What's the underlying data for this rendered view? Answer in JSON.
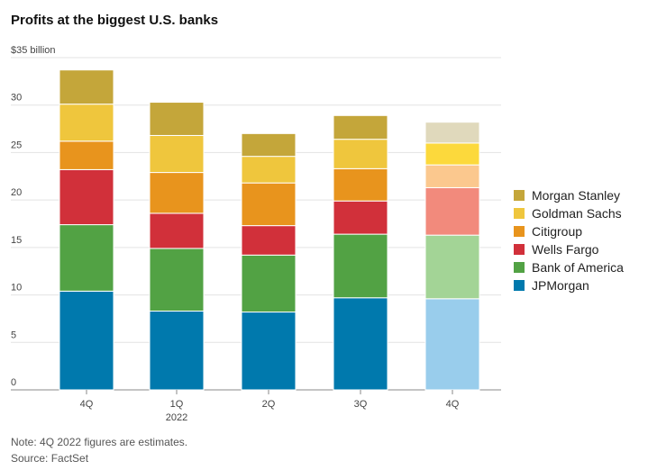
{
  "title": "Profits at the biggest U.S. banks",
  "note": "Note: 4Q 2022 figures are estimates.",
  "source": "Source: FactSet",
  "chart_data": {
    "type": "bar",
    "stacked": true,
    "unit_label": "$35 billion",
    "categories": [
      "4Q",
      "1Q",
      "2Q",
      "3Q",
      "4Q"
    ],
    "category_sublabels": [
      "",
      "2022",
      "",
      "",
      ""
    ],
    "ylim": [
      0,
      35
    ],
    "yticks": [
      0,
      5,
      10,
      15,
      20,
      25,
      30,
      35
    ],
    "ytick_labels": [
      "0",
      "5",
      "10",
      "15",
      "20",
      "25",
      "30",
      "$35 billion"
    ],
    "legend_position": "right",
    "estimated_categories": [
      4
    ],
    "series": [
      {
        "name": "JPMorgan",
        "color": "#0079ad",
        "estimate_color": "#99cdec",
        "values": [
          10.4,
          8.3,
          8.2,
          9.7,
          9.6
        ]
      },
      {
        "name": "Bank of America",
        "color": "#52a244",
        "estimate_color": "#a3d496",
        "values": [
          7.0,
          6.6,
          6.0,
          6.7,
          6.7
        ]
      },
      {
        "name": "Wells Fargo",
        "color": "#d1303a",
        "estimate_color": "#f28a7c",
        "values": [
          5.8,
          3.7,
          3.1,
          3.5,
          5.0
        ]
      },
      {
        "name": "Citigroup",
        "color": "#e8941d",
        "estimate_color": "#fbc88e",
        "values": [
          3.0,
          4.3,
          4.5,
          3.4,
          2.4
        ]
      },
      {
        "name": "Goldman Sachs",
        "color": "#efc63d",
        "estimate_color": "#fcd93c",
        "values": [
          3.9,
          3.9,
          2.8,
          3.1,
          2.3
        ]
      },
      {
        "name": "Morgan Stanley",
        "color": "#c4a63a",
        "estimate_color": "#e0d9bc",
        "values": [
          3.6,
          3.5,
          2.4,
          2.5,
          2.2
        ]
      }
    ],
    "legend_order": [
      "Morgan Stanley",
      "Goldman Sachs",
      "Citigroup",
      "Wells Fargo",
      "Bank of America",
      "JPMorgan"
    ]
  }
}
